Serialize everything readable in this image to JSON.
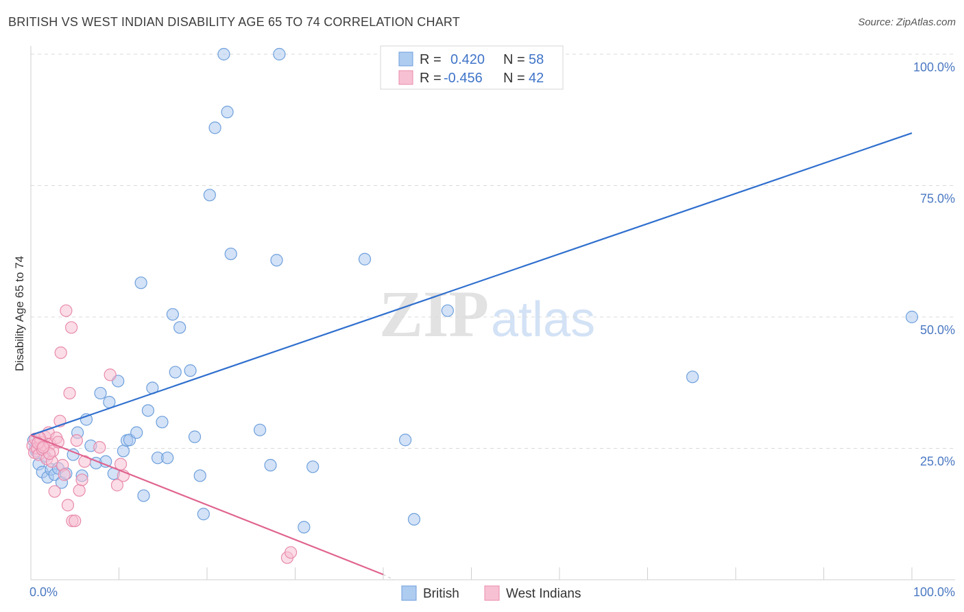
{
  "title": "BRITISH VS WEST INDIAN DISABILITY AGE 65 TO 74 CORRELATION CHART",
  "source": "Source: ZipAtlas.com",
  "watermark": {
    "zip": "ZIP",
    "atlas": "atlas"
  },
  "colors": {
    "british_fill": "#aecbf0",
    "british_stroke": "#6d9fdc",
    "british_line": "#2f6fce",
    "west_fill": "#f7c1d3",
    "west_stroke": "#e88aab",
    "west_line": "#e0648f",
    "axis_text": "#4a78c2",
    "grid": "#d9d9d9"
  },
  "legend": {
    "rows": [
      {
        "r_label": "R =",
        "r_value": "0.420",
        "n_label": "N =",
        "n_value": "58"
      },
      {
        "r_label": "R =",
        "r_value": "-0.456",
        "n_label": "N =",
        "n_value": "42"
      }
    ]
  },
  "chart_data": {
    "type": "scatter",
    "title": "BRITISH VS WEST INDIAN DISABILITY AGE 65 TO 74 CORRELATION CHART",
    "xlabel": "",
    "ylabel": "Disability Age 65 to 74",
    "xlim": [
      0,
      100
    ],
    "ylim": [
      0,
      100
    ],
    "x_tick_labels": [
      "0.0%",
      "100.0%"
    ],
    "y_ticks": [
      25,
      50,
      75,
      100
    ],
    "y_tick_labels": [
      "25.0%",
      "50.0%",
      "75.0%",
      "100.0%"
    ],
    "grid": true,
    "legend_placement": "top-center",
    "series": [
      {
        "name": "British",
        "r": 0.42,
        "n": 58,
        "trend": {
          "x0": 0,
          "y0": 27.5,
          "x1": 100,
          "y1": 85.0
        },
        "points": [
          [
            0.3,
            26.5
          ],
          [
            0.6,
            24.5
          ],
          [
            0.9,
            22.0
          ],
          [
            1.3,
            20.5
          ],
          [
            1.6,
            23.5
          ],
          [
            1.9,
            19.5
          ],
          [
            2.3,
            21.0
          ],
          [
            2.7,
            20.0
          ],
          [
            3.1,
            21.2
          ],
          [
            3.5,
            18.5
          ],
          [
            4.0,
            20.2
          ],
          [
            4.8,
            23.8
          ],
          [
            5.3,
            28.0
          ],
          [
            5.8,
            19.8
          ],
          [
            6.3,
            30.5
          ],
          [
            6.8,
            25.5
          ],
          [
            7.4,
            22.2
          ],
          [
            7.9,
            35.5
          ],
          [
            8.5,
            22.5
          ],
          [
            8.9,
            33.8
          ],
          [
            9.4,
            20.2
          ],
          [
            9.9,
            37.8
          ],
          [
            10.5,
            24.5
          ],
          [
            10.9,
            26.5
          ],
          [
            11.2,
            26.6
          ],
          [
            12.0,
            28.0
          ],
          [
            12.5,
            56.5
          ],
          [
            12.8,
            16.0
          ],
          [
            13.3,
            32.2
          ],
          [
            13.8,
            36.5
          ],
          [
            14.4,
            23.2
          ],
          [
            14.9,
            30.0
          ],
          [
            15.5,
            23.2
          ],
          [
            16.1,
            50.5
          ],
          [
            16.4,
            39.5
          ],
          [
            16.9,
            48.0
          ],
          [
            18.1,
            39.8
          ],
          [
            18.6,
            27.2
          ],
          [
            19.2,
            19.8
          ],
          [
            19.6,
            12.5
          ],
          [
            20.3,
            73.2
          ],
          [
            20.9,
            86.0
          ],
          [
            21.9,
            100.0
          ],
          [
            22.3,
            89.0
          ],
          [
            22.7,
            62.0
          ],
          [
            26.0,
            28.5
          ],
          [
            27.2,
            21.8
          ],
          [
            27.9,
            60.8
          ],
          [
            28.2,
            100.0
          ],
          [
            31.0,
            10.0
          ],
          [
            32.0,
            21.5
          ],
          [
            37.9,
            61.0
          ],
          [
            42.5,
            26.6
          ],
          [
            43.5,
            11.5
          ],
          [
            47.3,
            51.2
          ],
          [
            75.1,
            38.6
          ],
          [
            100.0,
            50.0
          ],
          [
            0.5,
            25.0
          ]
        ]
      },
      {
        "name": "West Indians",
        "r": -0.456,
        "n": 42,
        "trend": {
          "x0": 0,
          "y0": 27.5,
          "x1": 40,
          "y1": 1.0
        },
        "points": [
          [
            0.2,
            25.5
          ],
          [
            0.4,
            24.2
          ],
          [
            0.5,
            26.8
          ],
          [
            0.7,
            25.0
          ],
          [
            0.9,
            23.8
          ],
          [
            1.1,
            26.2
          ],
          [
            1.3,
            24.8
          ],
          [
            1.5,
            25.6
          ],
          [
            1.6,
            27.2
          ],
          [
            1.8,
            23.0
          ],
          [
            2.0,
            28.0
          ],
          [
            2.2,
            25.8
          ],
          [
            2.4,
            22.5
          ],
          [
            2.5,
            24.5
          ],
          [
            2.7,
            16.8
          ],
          [
            2.9,
            27.0
          ],
          [
            3.1,
            26.2
          ],
          [
            3.3,
            30.2
          ],
          [
            3.4,
            43.2
          ],
          [
            3.6,
            21.8
          ],
          [
            3.8,
            20.0
          ],
          [
            4.0,
            51.2
          ],
          [
            4.2,
            14.2
          ],
          [
            4.4,
            35.5
          ],
          [
            4.6,
            48.0
          ],
          [
            4.7,
            11.2
          ],
          [
            5.0,
            11.2
          ],
          [
            5.2,
            26.5
          ],
          [
            5.5,
            17.0
          ],
          [
            5.8,
            19.0
          ],
          [
            6.1,
            22.5
          ],
          [
            7.8,
            25.2
          ],
          [
            9.0,
            39.0
          ],
          [
            9.8,
            18.0
          ],
          [
            10.2,
            22.0
          ],
          [
            10.5,
            19.8
          ],
          [
            29.1,
            4.2
          ],
          [
            29.5,
            5.2
          ],
          [
            1.0,
            27.0
          ],
          [
            2.1,
            24.0
          ],
          [
            0.8,
            26.0
          ],
          [
            1.4,
            25.2
          ]
        ]
      }
    ]
  },
  "bottom_legend": {
    "items": [
      {
        "label": "British"
      },
      {
        "label": "West Indians"
      }
    ]
  }
}
